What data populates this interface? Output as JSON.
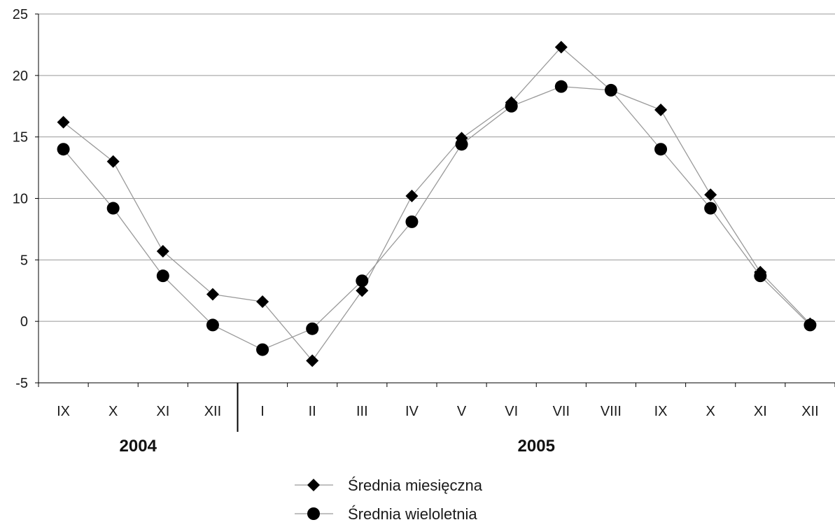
{
  "chart_data": {
    "type": "line",
    "categories": [
      "IX",
      "X",
      "XI",
      "XII",
      "I",
      "II",
      "III",
      "IV",
      "V",
      "VI",
      "VII",
      "VIII",
      "IX",
      "X",
      "XI",
      "XII"
    ],
    "year_groups": [
      {
        "label": "2004",
        "start_index": 0,
        "end_index": 3
      },
      {
        "label": "2005",
        "start_index": 4,
        "end_index": 15
      }
    ],
    "series": [
      {
        "name": "Średnia miesięczna",
        "marker": "diamond",
        "values": [
          16.2,
          13.0,
          5.7,
          2.2,
          1.6,
          -3.2,
          2.5,
          10.2,
          14.9,
          17.8,
          22.3,
          18.8,
          17.2,
          10.3,
          4.0,
          -0.2
        ]
      },
      {
        "name": "Średnia wieloletnia",
        "marker": "circle",
        "values": [
          14.0,
          9.2,
          3.7,
          -0.3,
          -2.3,
          -0.6,
          3.3,
          8.1,
          14.4,
          17.5,
          19.1,
          18.8,
          14.0,
          9.2,
          3.7,
          -0.3
        ]
      }
    ],
    "ylim": [
      -5,
      25
    ],
    "yticks": [
      -5,
      0,
      5,
      10,
      15,
      20,
      25
    ],
    "grid": true,
    "legend": "bottom-center",
    "title": "",
    "xlabel": "",
    "ylabel": "",
    "colors": {
      "line": "#9a9a9a",
      "marker": "#000000",
      "grid": "#999999",
      "axis": "#000000"
    }
  }
}
